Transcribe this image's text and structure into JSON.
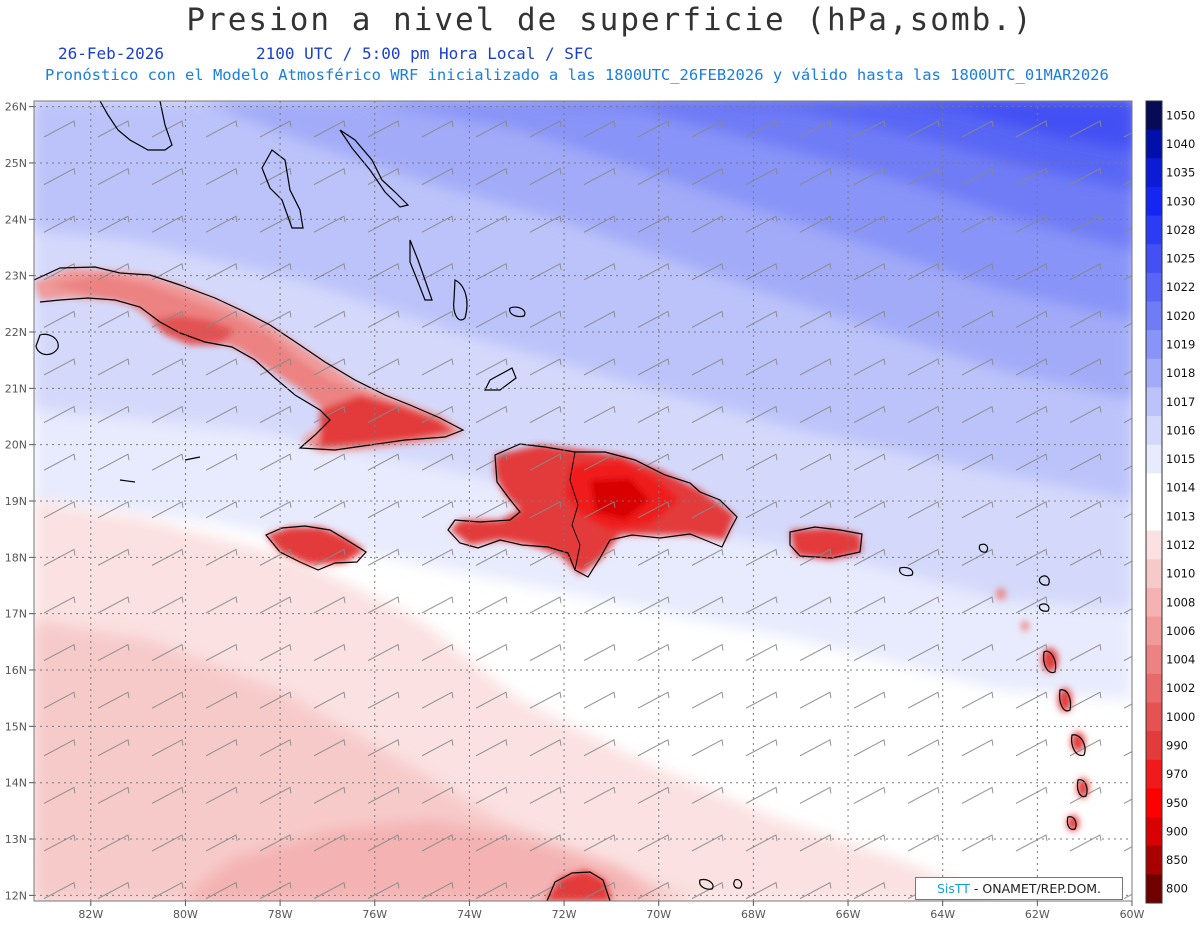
{
  "title": "Presion a nivel de superficie (hPa,somb.)",
  "date": "26-Feb-2026",
  "time_info": "2100 UTC / 5:00 pm Hora Local / SFC",
  "subtitle": "Pronóstico con el Modelo Atmosférico WRF inicializado a las 1800UTC_26FEB2026 y válido hasta las  1800UTC_01MAR2026",
  "credit": {
    "brand": "SisTT",
    "text": " - ONAMET/REP.DOM."
  },
  "map": {
    "lon_range": [
      -83.2,
      -60.0
    ],
    "lat_range": [
      11.9,
      26.1
    ],
    "lon_ticks": [
      "82W",
      "80W",
      "78W",
      "76W",
      "74W",
      "72W",
      "70W",
      "68W",
      "66W",
      "64W",
      "62W",
      "60W"
    ],
    "lat_ticks": [
      "12N",
      "13N",
      "14N",
      "15N",
      "16N",
      "17N",
      "18N",
      "19N",
      "20N",
      "21N",
      "22N",
      "23N",
      "24N",
      "25N",
      "26N"
    ],
    "gridlines": true
  },
  "colorbar": {
    "levels": [
      "1050",
      "1040",
      "1035",
      "1030",
      "1028",
      "1025",
      "1022",
      "1020",
      "1019",
      "1018",
      "1017",
      "1016",
      "1015",
      "1014",
      "1013",
      "1012",
      "1010",
      "1008",
      "1006",
      "1004",
      "1002",
      "1000",
      "990",
      "970",
      "950",
      "900",
      "850",
      "800"
    ],
    "colors": [
      "#050c55",
      "#0010a8",
      "#0b1bd6",
      "#1525f2",
      "#2c3bf4",
      "#4350f4",
      "#5966f5",
      "#6f7cf6",
      "#8894f7",
      "#a2abf8",
      "#bcc3fa",
      "#d4d9fb",
      "#e8ebfd",
      "#ffffff",
      "#ffffff",
      "#fbe1e1",
      "#f7caca",
      "#f4b2b2",
      "#f09a9a",
      "#ec8282",
      "#e86a6a",
      "#e45252",
      "#e33a3a",
      "#f01a1a",
      "#ff0000",
      "#d80000",
      "#a80000",
      "#700000"
    ]
  }
}
